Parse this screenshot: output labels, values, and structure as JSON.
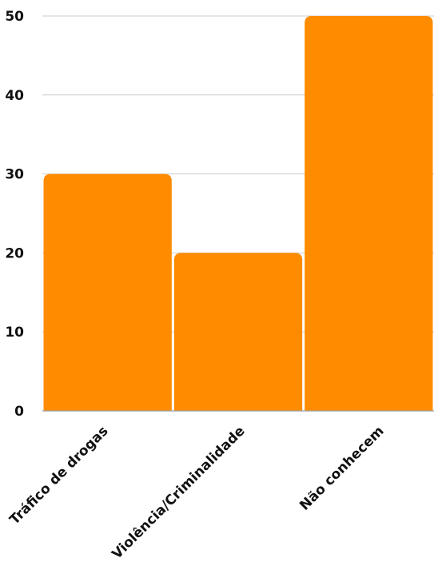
{
  "chart_data": {
    "type": "bar",
    "categories": [
      "Tráfico de drogas",
      "Violência/Criminalidade",
      "Não conhecem"
    ],
    "values": [
      30,
      20,
      50
    ],
    "title": "",
    "xlabel": "",
    "ylabel": "",
    "ylim": [
      0,
      50
    ],
    "yticks": [
      0,
      10,
      20,
      30,
      40,
      50
    ],
    "grid": true,
    "legend": "none",
    "bar_color": "#FF8C00",
    "grid_color": "#cccccc",
    "text_color": "#111111"
  }
}
